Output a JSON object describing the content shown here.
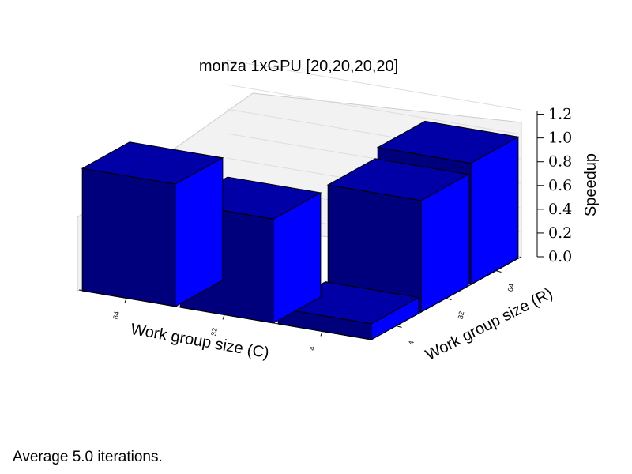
{
  "chart_data": {
    "type": "bar3d",
    "title": "monza 1xGPU [20,20,20,20]",
    "xlabel": "Work group size (C)",
    "ylabel": "Work group size (R)",
    "zlabel": "Speedup",
    "x_ticks": [
      "64",
      "32",
      "4"
    ],
    "y_ticks": [
      "4",
      "32",
      "64"
    ],
    "z_ticks": [
      "0.0",
      "0.2",
      "0.4",
      "0.6",
      "0.8",
      "1.0",
      "1.2"
    ],
    "zlim": [
      0,
      1.2
    ],
    "grid": true,
    "bars": [
      {
        "C": "64",
        "R": "4",
        "value": 1.0
      },
      {
        "C": "32",
        "R": "4",
        "value": 0.85
      },
      {
        "C": "4",
        "R": "4",
        "value": 0.13
      },
      {
        "C": "4",
        "R": "32",
        "value": 0.91
      },
      {
        "C": "4",
        "R": "64",
        "value": 0.99
      }
    ],
    "colors": {
      "front": "#00007d",
      "top": "#0000a6",
      "side": "#0000ff",
      "edge": "#000000"
    }
  },
  "footer": "Average 5.0 iterations."
}
